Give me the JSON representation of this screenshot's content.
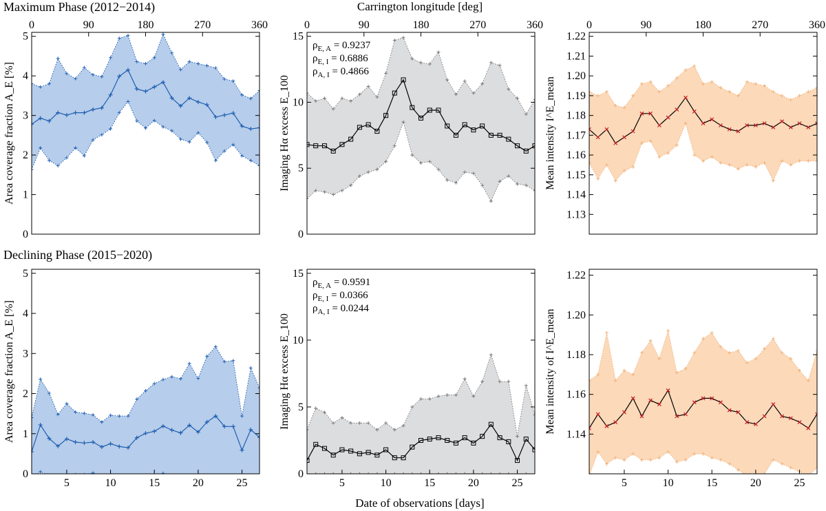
{
  "row_titles": {
    "top": "Maximum Phase (2012−2014)",
    "bottom": "Declining Phase (2015−2020)"
  },
  "common": {
    "top_axis_label": "Carrington longitude [deg]",
    "bottom_axis_label": "Date of observations [days]"
  },
  "colors": {
    "area_fill": "#b6cdeb",
    "area_line": "#1f5fb0",
    "ha_fill": "#dcdddf",
    "ha_line": "#000000",
    "ha_env": "#7a7a7a",
    "int_fill": "#fbd9b9",
    "int_line": "#000000",
    "int_marker": "#c0171f",
    "int_env": "#f2b27a"
  },
  "chart_data": [
    {
      "id": "max-area",
      "type": "area",
      "panel": "Maximum Phase, area coverage",
      "ylabel": "Area coverage fraction A_E [%]",
      "xlim": [
        1,
        27
      ],
      "ylim": [
        0,
        5.1
      ],
      "yticks": [
        0,
        1,
        2,
        3,
        4,
        5
      ],
      "xticks": [],
      "top_ticks": [
        "0",
        "90",
        "180",
        "270",
        "360"
      ],
      "x": [
        1,
        2,
        3,
        4,
        5,
        6,
        7,
        8,
        9,
        10,
        11,
        12,
        13,
        14,
        15,
        16,
        17,
        18,
        19,
        20,
        21,
        22,
        23,
        24,
        25,
        26,
        27
      ],
      "mean": [
        2.78,
        2.93,
        2.86,
        3.07,
        3.01,
        3.07,
        3.07,
        3.15,
        3.19,
        3.52,
        3.99,
        4.15,
        3.67,
        3.61,
        3.72,
        3.84,
        3.44,
        3.24,
        3.44,
        3.34,
        3.27,
        2.96,
        3.01,
        3.06,
        2.73,
        2.66,
        2.69
      ],
      "upper": [
        3.8,
        3.72,
        3.8,
        4.44,
        4.06,
        3.93,
        4.21,
        4.03,
        3.98,
        4.46,
        4.95,
        5.02,
        4.36,
        4.31,
        4.46,
        5.05,
        4.58,
        4.16,
        4.36,
        4.31,
        4.26,
        4.2,
        3.92,
        3.87,
        3.52,
        3.43,
        3.63
      ],
      "lower": [
        1.63,
        2.18,
        1.86,
        1.73,
        1.93,
        2.18,
        1.98,
        2.38,
        2.51,
        2.66,
        3.07,
        3.35,
        2.86,
        2.68,
        2.87,
        2.71,
        2.61,
        2.4,
        2.33,
        2.56,
        2.32,
        1.86,
        2.1,
        2.26,
        1.98,
        1.86,
        1.73
      ]
    },
    {
      "id": "max-ha",
      "type": "line",
      "panel": "Maximum Phase, H-alpha excess",
      "ylabel": "Imaging Hα excess E_100",
      "xlim": [
        1,
        27
      ],
      "ylim": [
        0,
        15.3
      ],
      "yticks": [
        0,
        5,
        10,
        15
      ],
      "xticks": [],
      "top_ticks": [
        "0",
        "90",
        "180",
        "270",
        "360"
      ],
      "annotations": [
        "ρ_{E, A} = 0.9237",
        "ρ_{E, I} = 0.6886",
        "ρ_{A, I} = 0.4866"
      ],
      "x": [
        1,
        2,
        3,
        4,
        5,
        6,
        7,
        8,
        9,
        10,
        11,
        12,
        13,
        14,
        15,
        16,
        17,
        18,
        19,
        20,
        21,
        22,
        23,
        24,
        25,
        26,
        27
      ],
      "mean": [
        6.8,
        6.7,
        6.7,
        6.3,
        6.8,
        7.2,
        8.1,
        8.3,
        7.8,
        9.0,
        10.7,
        11.7,
        9.6,
        8.8,
        9.4,
        9.4,
        8.2,
        7.5,
        8.3,
        7.9,
        8.2,
        7.5,
        7.5,
        7.2,
        6.7,
        6.3,
        6.7
      ],
      "upper": [
        10.7,
        10.1,
        10.3,
        9.5,
        10.3,
        10.1,
        10.6,
        11.2,
        10.4,
        12.2,
        14.7,
        14.9,
        13.3,
        13.0,
        12.9,
        13.8,
        11.7,
        10.6,
        11.6,
        10.7,
        11.4,
        13.0,
        12.8,
        11.0,
        10.3,
        9.1,
        10.2
      ],
      "lower": [
        2.7,
        3.3,
        3.2,
        3.0,
        3.3,
        3.7,
        4.4,
        4.7,
        4.9,
        5.5,
        6.7,
        8.5,
        6.0,
        5.4,
        5.5,
        4.9,
        4.1,
        3.9,
        4.7,
        4.6,
        3.7,
        2.5,
        4.0,
        4.4,
        3.8,
        3.7,
        3.3
      ]
    },
    {
      "id": "max-int",
      "type": "line",
      "panel": "Maximum Phase, mean intensity",
      "ylabel": "Mean intensity I^E_mean",
      "xlim": [
        1,
        27
      ],
      "ylim": [
        1.12,
        1.222
      ],
      "yticks": [
        "1.13",
        "1.14",
        "1.15",
        "1.16",
        "1.17",
        "1.18",
        "1.19",
        "1.20",
        "1.21",
        "1.22"
      ],
      "xticks": [],
      "top_ticks": [
        "0",
        "90",
        "180",
        "270",
        "360"
      ],
      "x": [
        1,
        2,
        3,
        4,
        5,
        6,
        7,
        8,
        9,
        10,
        11,
        12,
        13,
        14,
        15,
        16,
        17,
        18,
        19,
        20,
        21,
        22,
        23,
        24,
        25,
        26,
        27
      ],
      "mean": [
        1.173,
        1.169,
        1.173,
        1.166,
        1.169,
        1.172,
        1.181,
        1.181,
        1.175,
        1.179,
        1.183,
        1.189,
        1.182,
        1.176,
        1.178,
        1.175,
        1.173,
        1.172,
        1.175,
        1.175,
        1.176,
        1.174,
        1.177,
        1.174,
        1.176,
        1.174,
        1.176
      ],
      "upper": [
        1.192,
        1.19,
        1.192,
        1.185,
        1.184,
        1.19,
        1.196,
        1.197,
        1.192,
        1.195,
        1.199,
        1.203,
        1.205,
        1.196,
        1.197,
        1.194,
        1.192,
        1.19,
        1.197,
        1.196,
        1.195,
        1.192,
        1.19,
        1.188,
        1.19,
        1.192,
        1.194
      ],
      "lower": [
        1.156,
        1.148,
        1.155,
        1.147,
        1.152,
        1.154,
        1.166,
        1.167,
        1.159,
        1.161,
        1.165,
        1.176,
        1.16,
        1.157,
        1.159,
        1.156,
        1.155,
        1.153,
        1.155,
        1.154,
        1.156,
        1.147,
        1.157,
        1.155,
        1.157,
        1.157,
        1.157
      ]
    },
    {
      "id": "dec-area",
      "type": "area",
      "panel": "Declining Phase, area coverage",
      "ylabel": "Area coverage fraction A_E [%]",
      "xlim": [
        1,
        27
      ],
      "ylim": [
        0,
        5.1
      ],
      "yticks": [
        0,
        1,
        2,
        3,
        4,
        5
      ],
      "xticks": [
        5,
        10,
        15,
        20,
        25
      ],
      "top_ticks": [],
      "x": [
        1,
        2,
        3,
        4,
        5,
        6,
        7,
        8,
        9,
        10,
        11,
        12,
        13,
        14,
        15,
        16,
        17,
        18,
        19,
        20,
        21,
        22,
        23,
        24,
        25,
        26,
        27
      ],
      "mean": [
        0.55,
        1.22,
        0.88,
        0.69,
        0.87,
        0.79,
        0.77,
        0.79,
        0.67,
        0.75,
        0.68,
        0.65,
        0.9,
        1.01,
        1.06,
        1.19,
        1.09,
        1.02,
        1.21,
        1.04,
        1.29,
        1.44,
        1.18,
        1.18,
        0.59,
        1.1,
        0.91
      ],
      "upper": [
        1.4,
        2.36,
        2.01,
        1.48,
        1.75,
        1.54,
        1.51,
        1.47,
        1.29,
        1.46,
        1.44,
        1.44,
        1.86,
        2.07,
        2.25,
        2.35,
        2.42,
        2.37,
        2.75,
        2.38,
        2.93,
        3.17,
        2.8,
        2.82,
        1.44,
        2.64,
        2.14
      ],
      "lower": [
        -0.1,
        0.05,
        -0.05,
        -0.1,
        -0.05,
        -0.02,
        -0.02,
        0.02,
        -0.05,
        -0.02,
        -0.05,
        -0.05,
        -0.05,
        -0.05,
        -0.05,
        0.01,
        -0.05,
        -0.05,
        -0.05,
        -0.05,
        -0.05,
        -0.05,
        -0.05,
        -0.05,
        -0.05,
        -0.05,
        -0.05
      ]
    },
    {
      "id": "dec-ha",
      "type": "line",
      "panel": "Declining Phase, H-alpha excess",
      "ylabel": "Imaging Hα excess E_100",
      "xlim": [
        1,
        27
      ],
      "ylim": [
        0,
        15.3
      ],
      "yticks": [
        0,
        5,
        10,
        15
      ],
      "xticks": [
        5,
        10,
        15,
        20,
        25
      ],
      "top_ticks": [],
      "annotations": [
        "ρ_{E, A} = 0.9591",
        "ρ_{E, I} = 0.0366",
        "ρ_{A, I} = 0.0244"
      ],
      "x": [
        1,
        2,
        3,
        4,
        5,
        6,
        7,
        8,
        9,
        10,
        11,
        12,
        13,
        14,
        15,
        16,
        17,
        18,
        19,
        20,
        21,
        22,
        23,
        24,
        25,
        26,
        27
      ],
      "mean": [
        1.0,
        2.2,
        1.9,
        1.4,
        1.8,
        1.7,
        1.5,
        1.6,
        1.4,
        1.8,
        1.2,
        1.2,
        2.0,
        2.5,
        2.6,
        2.7,
        2.5,
        2.3,
        2.7,
        2.3,
        2.8,
        3.7,
        2.7,
        2.4,
        1.0,
        2.6,
        1.8
      ],
      "upper": [
        3.3,
        4.9,
        4.6,
        3.8,
        4.2,
        3.8,
        3.8,
        3.8,
        3.3,
        3.8,
        3.3,
        3.6,
        5.0,
        5.6,
        5.6,
        5.8,
        5.9,
        5.9,
        7.1,
        5.8,
        6.9,
        8.9,
        6.9,
        6.9,
        2.8,
        6.6,
        4.4
      ],
      "lower": [
        0,
        0,
        0,
        0,
        0,
        0,
        0,
        0,
        0,
        0,
        0,
        0,
        0,
        0,
        0,
        0,
        0,
        0,
        0,
        0,
        0,
        0,
        0,
        0,
        0,
        0,
        0
      ]
    },
    {
      "id": "dec-int",
      "type": "line",
      "panel": "Declining Phase, mean intensity",
      "ylabel": "Mean intensity of I^E_mean",
      "xlim": [
        1,
        27
      ],
      "ylim": [
        1.12,
        1.223
      ],
      "yticks": [
        "1.14",
        "1.16",
        "1.18",
        "1.20",
        "1.22"
      ],
      "xticks": [
        5,
        10,
        15,
        20,
        25
      ],
      "top_ticks": [],
      "x": [
        1,
        2,
        3,
        4,
        5,
        6,
        7,
        8,
        9,
        10,
        11,
        12,
        13,
        14,
        15,
        16,
        17,
        18,
        19,
        20,
        21,
        22,
        23,
        24,
        25,
        26,
        27
      ],
      "mean": [
        1.143,
        1.15,
        1.144,
        1.146,
        1.151,
        1.158,
        1.149,
        1.157,
        1.155,
        1.162,
        1.149,
        1.15,
        1.156,
        1.158,
        1.158,
        1.156,
        1.152,
        1.151,
        1.146,
        1.145,
        1.149,
        1.155,
        1.149,
        1.148,
        1.146,
        1.143,
        1.15
      ],
      "upper": [
        1.167,
        1.17,
        1.191,
        1.167,
        1.172,
        1.17,
        1.181,
        1.187,
        1.178,
        1.192,
        1.171,
        1.173,
        1.181,
        1.188,
        1.191,
        1.184,
        1.181,
        1.182,
        1.176,
        1.178,
        1.183,
        1.188,
        1.181,
        1.178,
        1.172,
        1.167,
        1.182
      ],
      "lower": [
        1.119,
        1.131,
        1.125,
        1.128,
        1.127,
        1.13,
        1.127,
        1.127,
        1.128,
        1.131,
        1.126,
        1.127,
        1.13,
        1.13,
        1.128,
        1.127,
        1.125,
        1.122,
        1.119,
        1.119,
        1.12,
        1.127,
        1.125,
        1.123,
        1.121,
        1.119,
        1.123
      ]
    }
  ]
}
